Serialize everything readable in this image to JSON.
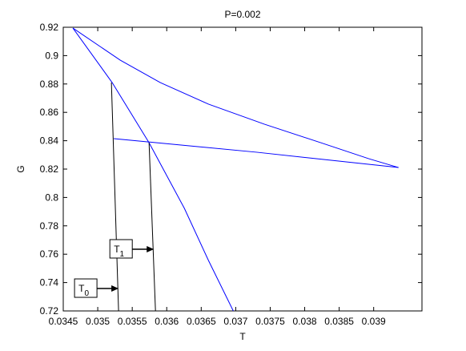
{
  "chart_data": {
    "type": "line",
    "title": "P=0.002",
    "xlabel": "T",
    "ylabel": "G",
    "xlim": [
      0.0345,
      0.0397
    ],
    "ylim": [
      0.72,
      0.92
    ],
    "xticks": [
      0.0345,
      0.035,
      0.0355,
      0.036,
      0.0365,
      0.037,
      0.0375,
      0.038,
      0.0385,
      0.039
    ],
    "yticks": [
      0.72,
      0.74,
      0.76,
      0.78,
      0.8,
      0.82,
      0.84,
      0.86,
      0.88,
      0.9,
      0.92
    ],
    "series": [
      {
        "color": "#0000ff",
        "x": [
          0.03464,
          0.035326,
          0.035907,
          0.036605,
          0.037419,
          0.038233,
          0.03893,
          0.03936
        ],
        "values": [
          0.9194,
          0.8968,
          0.881,
          0.8658,
          0.8516,
          0.8386,
          0.8273,
          0.8211
        ]
      },
      {
        "color": "#0000ff",
        "x": [
          0.03464,
          0.035209,
          0.035744,
          0.036256,
          0.036605,
          0.036965
        ],
        "values": [
          0.9194,
          0.881,
          0.8386,
          0.7923,
          0.7556,
          0.72
        ]
      },
      {
        "color": "#0000ff",
        "x": [
          0.035233,
          0.037302,
          0.03936
        ],
        "values": [
          0.8415,
          0.8319,
          0.8211
        ]
      },
      {
        "color": "#000000",
        "x": [
          0.035198,
          0.035302
        ],
        "values": [
          0.881,
          0.72
        ]
      },
      {
        "color": "#000000",
        "x": [
          0.035744,
          0.035837
        ],
        "values": [
          0.8386,
          0.72
        ]
      }
    ],
    "annotations": [
      {
        "text": "T",
        "sub": "0",
        "x": 0.035302,
        "y": 0.7358
      },
      {
        "text": "T",
        "sub": "1",
        "x": 0.035814,
        "y": 0.7635
      }
    ]
  }
}
